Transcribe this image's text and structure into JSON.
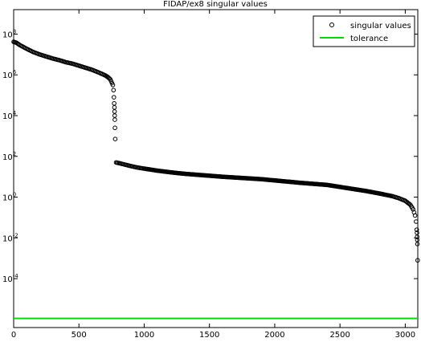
{
  "chart_data": {
    "type": "scatter",
    "title": "FIDAP/ex8 singular values",
    "xlabel": "",
    "ylabel": "",
    "y_scale": "log",
    "xlim": [
      0,
      3096
    ],
    "ylim_exponent": [
      -6.4,
      9.2
    ],
    "grid": false,
    "legend_position": "top-right",
    "x_ticks": [
      {
        "value": 0,
        "label": "0"
      },
      {
        "value": 500,
        "label": "500"
      },
      {
        "value": 1000,
        "label": "1000"
      },
      {
        "value": 1500,
        "label": "1500"
      },
      {
        "value": 2000,
        "label": "2000"
      },
      {
        "value": 2500,
        "label": "2500"
      },
      {
        "value": 3000,
        "label": "3000"
      }
    ],
    "y_ticks": [
      {
        "exponent": 8,
        "label": "10^8"
      },
      {
        "exponent": 6,
        "label": "10^6"
      },
      {
        "exponent": 4,
        "label": "10^4"
      },
      {
        "exponent": 2,
        "label": "10^2"
      },
      {
        "exponent": 0,
        "label": "10^0"
      },
      {
        "exponent": -2,
        "label": "10^-2"
      },
      {
        "exponent": -4,
        "label": "10^-4"
      }
    ],
    "series": [
      {
        "name": "singular values",
        "marker": "circle",
        "color": "#000000",
        "points_log10": [
          [
            0,
            7.62
          ],
          [
            20,
            7.58
          ],
          [
            50,
            7.45
          ],
          [
            100,
            7.28
          ],
          [
            150,
            7.12
          ],
          [
            200,
            7.0
          ],
          [
            250,
            6.9
          ],
          [
            300,
            6.8
          ],
          [
            350,
            6.72
          ],
          [
            400,
            6.62
          ],
          [
            450,
            6.55
          ],
          [
            500,
            6.45
          ],
          [
            550,
            6.35
          ],
          [
            600,
            6.25
          ],
          [
            650,
            6.12
          ],
          [
            700,
            5.98
          ],
          [
            720,
            5.9
          ],
          [
            740,
            5.78
          ],
          [
            760,
            5.5
          ],
          [
            765,
            5.25
          ],
          [
            768,
            4.9
          ],
          [
            770,
            4.6
          ],
          [
            772,
            4.4
          ],
          [
            773,
            4.2
          ],
          [
            774,
            4.0
          ],
          [
            775,
            3.8
          ],
          [
            776,
            3.4
          ],
          [
            778,
            2.85
          ],
          [
            785,
            1.7
          ],
          [
            800,
            1.68
          ],
          [
            850,
            1.6
          ],
          [
            900,
            1.52
          ],
          [
            950,
            1.45
          ],
          [
            1000,
            1.4
          ],
          [
            1100,
            1.3
          ],
          [
            1200,
            1.22
          ],
          [
            1300,
            1.15
          ],
          [
            1400,
            1.1
          ],
          [
            1500,
            1.05
          ],
          [
            1600,
            1.0
          ],
          [
            1700,
            0.96
          ],
          [
            1800,
            0.92
          ],
          [
            1900,
            0.88
          ],
          [
            2000,
            0.82
          ],
          [
            2100,
            0.76
          ],
          [
            2200,
            0.7
          ],
          [
            2300,
            0.65
          ],
          [
            2400,
            0.6
          ],
          [
            2500,
            0.5
          ],
          [
            2600,
            0.4
          ],
          [
            2700,
            0.3
          ],
          [
            2800,
            0.18
          ],
          [
            2900,
            0.05
          ],
          [
            2950,
            -0.05
          ],
          [
            3000,
            -0.18
          ],
          [
            3040,
            -0.38
          ],
          [
            3060,
            -0.6
          ],
          [
            3075,
            -0.9
          ],
          [
            3083,
            -1.2
          ],
          [
            3088,
            -1.6
          ],
          [
            3090,
            -1.75
          ],
          [
            3091,
            -1.95
          ],
          [
            3092,
            -2.1
          ],
          [
            3093,
            -2.3
          ],
          [
            3095,
            -3.1
          ]
        ]
      },
      {
        "name": "tolerance",
        "color": "#00dd00",
        "value_log10": -5.95
      }
    ]
  }
}
